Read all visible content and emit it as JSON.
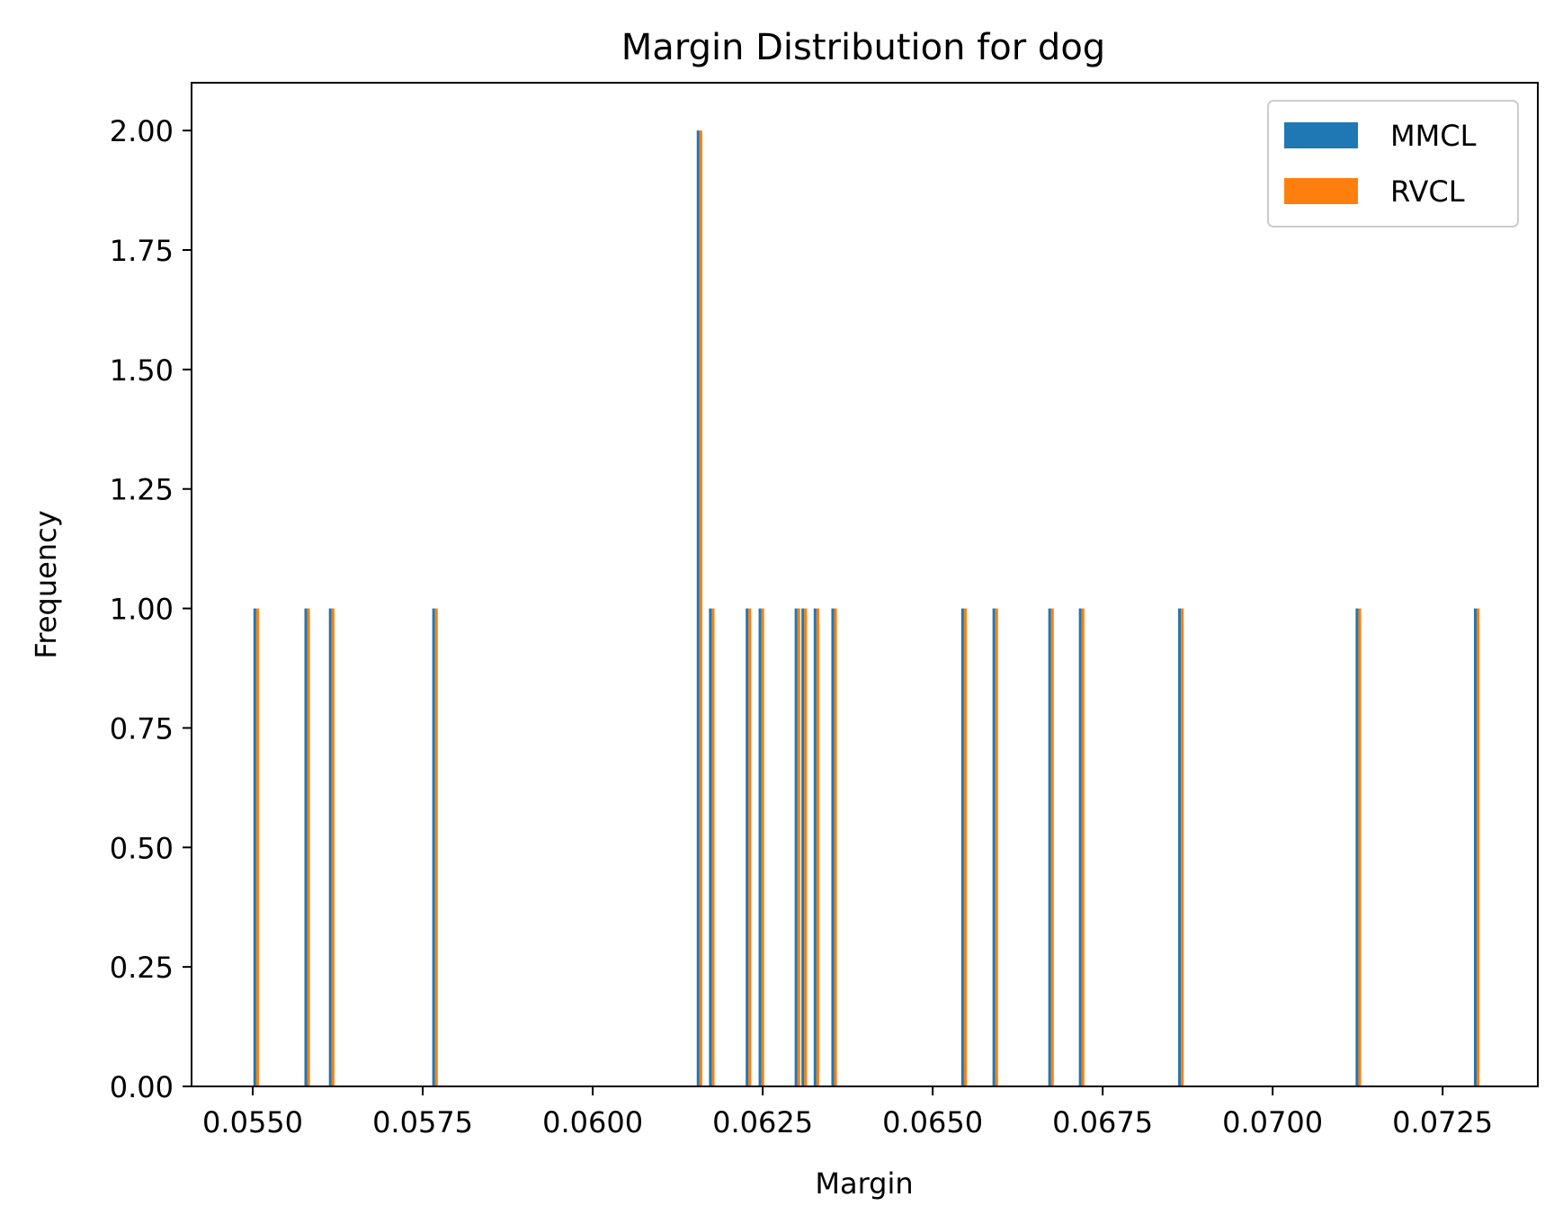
{
  "chart_data": {
    "type": "bar",
    "title": "Margin Distribution for dog",
    "xlabel": "Margin",
    "ylabel": "Frequency",
    "xlim": [
      0.0541,
      0.0739
    ],
    "ylim": [
      0,
      2.1
    ],
    "x_ticks": [
      0.055,
      0.0575,
      0.06,
      0.0625,
      0.065,
      0.0675,
      0.07,
      0.0725
    ],
    "x_tick_labels": [
      "0.0550",
      "0.0575",
      "0.0600",
      "0.0625",
      "0.0650",
      "0.0675",
      "0.0700",
      "0.0725"
    ],
    "y_ticks": [
      0,
      0.25,
      0.5,
      0.75,
      1.0,
      1.25,
      1.5,
      1.75,
      2.0
    ],
    "y_tick_labels": [
      "0.00",
      "0.25",
      "0.50",
      "0.75",
      "1.00",
      "1.25",
      "1.50",
      "1.75",
      "2.00"
    ],
    "bin_width": 4.1e-05,
    "legend_position": "top-right",
    "series": [
      {
        "name": "MMCL",
        "color": "#1f77b4",
        "bars": [
          {
            "x": 0.05501,
            "count": 1
          },
          {
            "x": 0.05576,
            "count": 1
          },
          {
            "x": 0.05612,
            "count": 1
          },
          {
            "x": 0.05764,
            "count": 1
          },
          {
            "x": 0.06153,
            "count": 2
          },
          {
            "x": 0.06171,
            "count": 1
          },
          {
            "x": 0.06225,
            "count": 1
          },
          {
            "x": 0.06244,
            "count": 1
          },
          {
            "x": 0.06297,
            "count": 1
          },
          {
            "x": 0.06307,
            "count": 1
          },
          {
            "x": 0.06325,
            "count": 1
          },
          {
            "x": 0.06351,
            "count": 1
          },
          {
            "x": 0.06542,
            "count": 1
          },
          {
            "x": 0.06588,
            "count": 1
          },
          {
            "x": 0.0667,
            "count": 1
          },
          {
            "x": 0.06715,
            "count": 1
          },
          {
            "x": 0.06861,
            "count": 1
          },
          {
            "x": 0.07122,
            "count": 1
          },
          {
            "x": 0.07296,
            "count": 1
          }
        ]
      },
      {
        "name": "RVCL",
        "color": "#ff7f0e",
        "bars": [
          {
            "x": 0.05505,
            "count": 1
          },
          {
            "x": 0.0558,
            "count": 1
          },
          {
            "x": 0.05616,
            "count": 1
          },
          {
            "x": 0.05768,
            "count": 1
          },
          {
            "x": 0.06157,
            "count": 2
          },
          {
            "x": 0.06175,
            "count": 1
          },
          {
            "x": 0.06229,
            "count": 1
          },
          {
            "x": 0.06248,
            "count": 1
          },
          {
            "x": 0.06301,
            "count": 1
          },
          {
            "x": 0.06311,
            "count": 1
          },
          {
            "x": 0.06329,
            "count": 1
          },
          {
            "x": 0.06355,
            "count": 1
          },
          {
            "x": 0.06546,
            "count": 1
          },
          {
            "x": 0.06592,
            "count": 1
          },
          {
            "x": 0.06674,
            "count": 1
          },
          {
            "x": 0.06719,
            "count": 1
          },
          {
            "x": 0.06865,
            "count": 1
          },
          {
            "x": 0.07126,
            "count": 1
          },
          {
            "x": 0.073,
            "count": 1
          }
        ]
      }
    ]
  }
}
